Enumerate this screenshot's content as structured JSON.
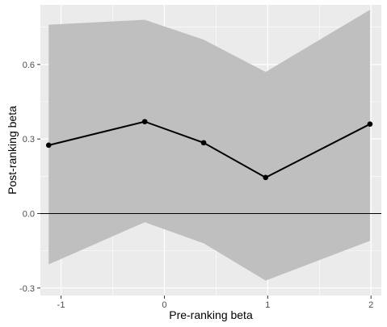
{
  "chart_data": {
    "type": "line",
    "xlabel": "Pre-ranking beta",
    "ylabel": "Post-ranking beta",
    "xlim": [
      -1.2,
      2.1
    ],
    "ylim": [
      -0.33,
      0.84
    ],
    "x_ticks": [
      -1,
      0,
      1,
      2
    ],
    "x_tick_labels": [
      "-1",
      "0",
      "1",
      "2"
    ],
    "y_ticks": [
      -0.3,
      0.0,
      0.3,
      0.6
    ],
    "y_tick_labels": [
      "-0.3",
      "0.0",
      "0.3",
      "0.6"
    ],
    "grid": true,
    "reference_line_y": 0.0,
    "series": [
      {
        "x": [
          -1.12,
          -0.19,
          0.38,
          0.98,
          1.99
        ],
        "y": [
          0.275,
          0.37,
          0.285,
          0.145,
          0.36
        ],
        "lower": [
          -0.205,
          -0.035,
          -0.12,
          -0.27,
          -0.11
        ],
        "upper": [
          0.76,
          0.78,
          0.7,
          0.57,
          0.82
        ]
      }
    ],
    "colors": {
      "panel": "#ebebeb",
      "grid_major": "#ffffff",
      "ribbon": "#bfbfbf",
      "line": "#000000",
      "reference_line": "#000000"
    }
  }
}
